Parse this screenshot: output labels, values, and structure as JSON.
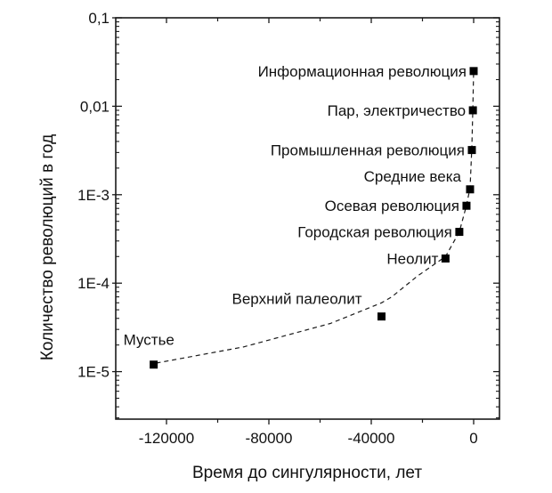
{
  "chart_data": {
    "type": "scatter",
    "title": "",
    "xlabel": "Время до сингулярности, лет",
    "ylabel": "Количество революций в год",
    "xlim": [
      -140000,
      10000
    ],
    "ylim": [
      2.9e-06,
      0.1
    ],
    "yscale": "log",
    "grid": false,
    "legend": null,
    "x_ticks": [
      {
        "value": -120000,
        "label": "-120000"
      },
      {
        "value": -80000,
        "label": "-80000"
      },
      {
        "value": -40000,
        "label": "-40000"
      },
      {
        "value": 0,
        "label": "0"
      }
    ],
    "x_minor_ticks": [
      -100000,
      -60000,
      -20000
    ],
    "y_ticks": [
      {
        "value": 0.1,
        "label": "0,1"
      },
      {
        "value": 0.01,
        "label": "0,01"
      },
      {
        "value": 0.001,
        "label": "1E-3"
      },
      {
        "value": 0.0001,
        "label": "1E-4"
      },
      {
        "value": 1e-05,
        "label": "1E-5"
      }
    ],
    "points": [
      {
        "label": "Мустье",
        "x": -125000,
        "y": 1.2e-05,
        "label_pos": "above-left"
      },
      {
        "label": "Верхний палеолит",
        "x": -36000,
        "y": 4.2e-05,
        "label_pos": "above-left"
      },
      {
        "label": "Неолит",
        "x": -11000,
        "y": 0.00019,
        "label_pos": "left"
      },
      {
        "label": "Городская революция",
        "x": -5600,
        "y": 0.00038,
        "label_pos": "left"
      },
      {
        "label": "Осевая революция",
        "x": -2800,
        "y": 0.00075,
        "label_pos": "left"
      },
      {
        "label": "Средние века",
        "x": -1400,
        "y": 0.00115,
        "label_pos": "above-left"
      },
      {
        "label": "Промышленная революция",
        "x": -700,
        "y": 0.0032,
        "label_pos": "left"
      },
      {
        "label": "Пар, электричество",
        "x": -300,
        "y": 0.009,
        "label_pos": "left"
      },
      {
        "label": "Информационная революция",
        "x": 0,
        "y": 0.025,
        "label_pos": "left"
      }
    ],
    "fit_curve": {
      "style": "dashed",
      "description": "hyperbolic-type fit through the points",
      "x": [
        -124000,
        -90000,
        -56000,
        -36000,
        -32000,
        -22000,
        -11000,
        -5600,
        -2800,
        -1400,
        -700,
        -300,
        0
      ],
      "y": [
        1.25e-05,
        1.9e-05,
        3.5e-05,
        6e-05,
        7e-05,
        0.00012,
        0.0002,
        0.00038,
        0.00076,
        0.0012,
        0.0035,
        0.0095,
        0.026
      ]
    }
  },
  "colors": {
    "axis": "#1a1a1a",
    "marker": "#000000",
    "curve": "#1a1a1a",
    "background": "#ffffff"
  }
}
